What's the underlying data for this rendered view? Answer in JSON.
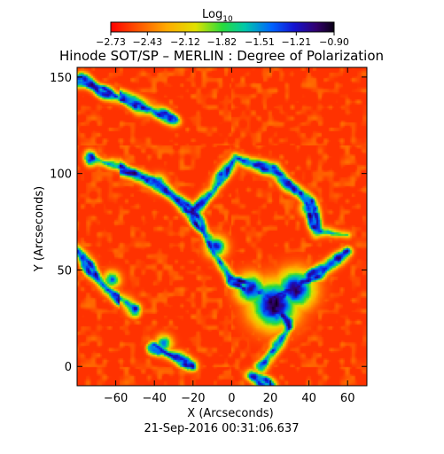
{
  "chart_data": {
    "type": "heatmap",
    "title": "Hinode SOT/SP – MERLIN : Degree of Polarization",
    "xlabel": "X (Arcseconds)",
    "ylabel": "Y (Arcseconds)",
    "xlim": [
      -80,
      70
    ],
    "ylim": [
      -10,
      155
    ],
    "x_ticks": [
      "-60",
      "-40",
      "-20",
      "0",
      "20",
      "40",
      "60"
    ],
    "y_ticks": [
      "0",
      "50",
      "100",
      "150"
    ],
    "x_tick_values": [
      -60,
      -40,
      -20,
      0,
      20,
      40,
      60
    ],
    "y_tick_values": [
      0,
      50,
      100,
      150
    ],
    "colorbar": {
      "label": "Log",
      "label_sub": "10",
      "tick_labels": [
        "-2.73",
        "-2.43",
        "-2.12",
        "-1.82",
        "-1.51",
        "-1.21",
        "-0.90"
      ],
      "tick_values": [
        -2.73,
        -2.43,
        -2.12,
        -1.82,
        -1.51,
        -1.21,
        -0.9
      ],
      "range": [
        -2.73,
        -0.9
      ]
    },
    "timestamp": "21-Sep-2016 00:31:06.637",
    "dominant_value": -2.6,
    "network_lanes": [
      {
        "from": [
          -72,
          108
        ],
        "to": [
          -40,
          96
        ]
      },
      {
        "from": [
          -40,
          96
        ],
        "to": [
          -20,
          80
        ]
      },
      {
        "from": [
          -20,
          80
        ],
        "to": [
          -10,
          60
        ]
      },
      {
        "from": [
          -10,
          60
        ],
        "to": [
          0,
          45
        ]
      },
      {
        "from": [
          0,
          45
        ],
        "to": [
          22,
          35
        ]
      },
      {
        "from": [
          22,
          35
        ],
        "to": [
          45,
          48
        ]
      },
      {
        "from": [
          45,
          48
        ],
        "to": [
          60,
          60
        ]
      },
      {
        "from": [
          2,
          108
        ],
        "to": [
          -10,
          90
        ]
      },
      {
        "from": [
          -10,
          90
        ],
        "to": [
          -20,
          80
        ]
      },
      {
        "from": [
          2,
          108
        ],
        "to": [
          22,
          102
        ]
      },
      {
        "from": [
          22,
          102
        ],
        "to": [
          40,
          85
        ]
      },
      {
        "from": [
          40,
          85
        ],
        "to": [
          45,
          70
        ]
      },
      {
        "from": [
          45,
          70
        ],
        "to": [
          60,
          68
        ]
      },
      {
        "from": [
          -78,
          148
        ],
        "to": [
          -55,
          138
        ]
      },
      {
        "from": [
          -55,
          138
        ],
        "to": [
          -30,
          128
        ]
      },
      {
        "from": [
          -80,
          60
        ],
        "to": [
          -65,
          40
        ]
      },
      {
        "from": [
          -65,
          40
        ],
        "to": [
          -50,
          30
        ]
      },
      {
        "from": [
          -40,
          10
        ],
        "to": [
          -20,
          0
        ]
      },
      {
        "from": [
          22,
          35
        ],
        "to": [
          30,
          20
        ]
      },
      {
        "from": [
          30,
          20
        ],
        "to": [
          15,
          0
        ]
      },
      {
        "from": [
          10,
          -5
        ],
        "to": [
          20,
          -10
        ]
      }
    ],
    "network_clusters": [
      {
        "x": 22,
        "y": 32,
        "r": 11,
        "v": -0.95
      },
      {
        "x": 33,
        "y": 40,
        "r": 9,
        "v": -1.05
      },
      {
        "x": 10,
        "y": 40,
        "r": 7,
        "v": -1.15
      },
      {
        "x": -8,
        "y": 62,
        "r": 5,
        "v": -1.25
      },
      {
        "x": -38,
        "y": 95,
        "r": 4,
        "v": -1.35
      },
      {
        "x": 40,
        "y": 82,
        "r": 4,
        "v": -1.3
      },
      {
        "x": -35,
        "y": 12,
        "r": 4,
        "v": -1.45
      },
      {
        "x": -62,
        "y": 45,
        "r": 4,
        "v": -1.4
      }
    ]
  }
}
